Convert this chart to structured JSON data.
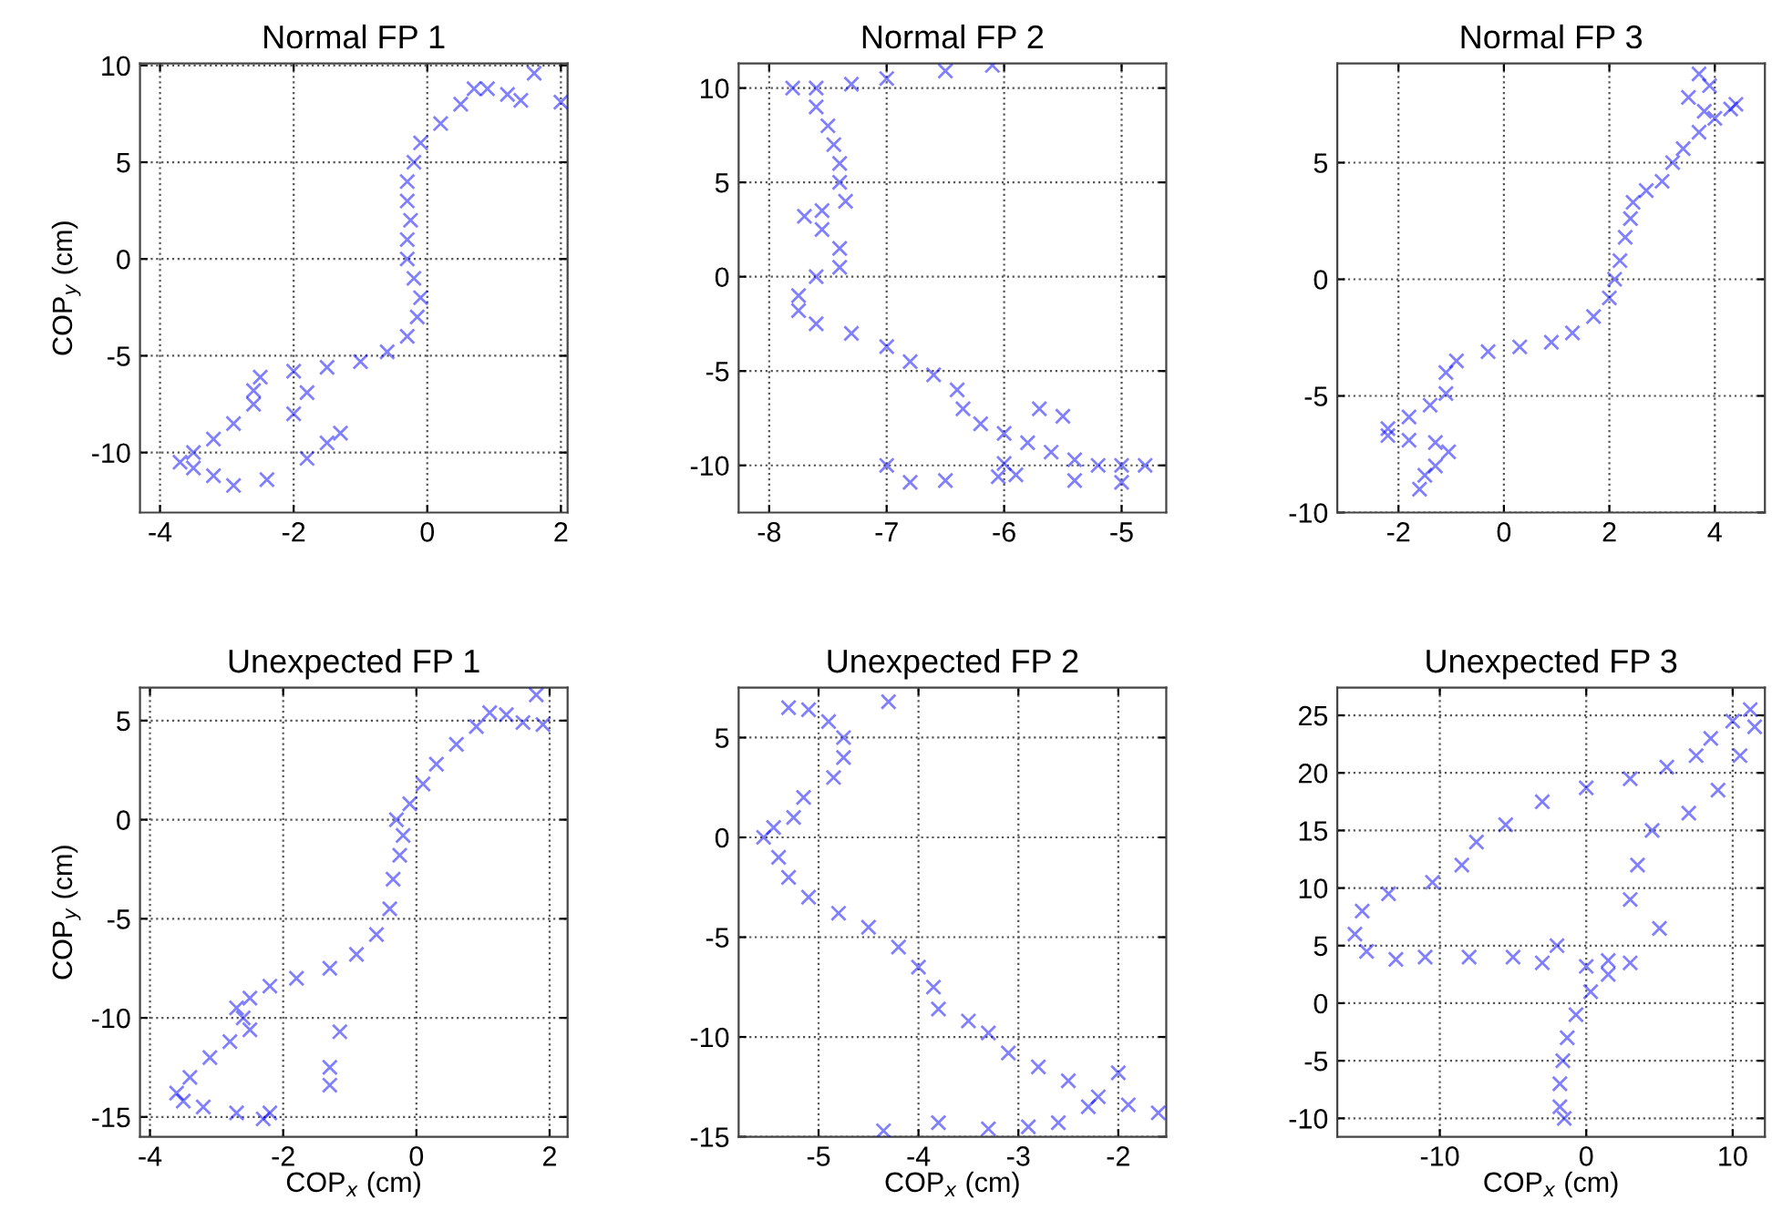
{
  "chart_data": [
    {
      "type": "scatter",
      "title": "Normal FP 1",
      "ylabel": "COP$_{y}$ (cm)",
      "marker": "cross",
      "grid": true,
      "xlim": [
        -4.3,
        2.1
      ],
      "ylim": [
        -13.1,
        10.1
      ],
      "xticks": [
        -4,
        -2,
        0,
        2
      ],
      "yticks": [
        -10,
        -5,
        0,
        5,
        10
      ],
      "x": [
        -2.9,
        -3.2,
        -3.5,
        -3.7,
        -3.5,
        -3.2,
        -2.9,
        -2.6,
        -2.6,
        -2.5,
        -2.0,
        -1.5,
        -1.0,
        -0.6,
        -0.3,
        -0.15,
        -0.1,
        -0.2,
        -0.3,
        -0.3,
        -0.25,
        -0.3,
        -0.3,
        -0.2,
        -0.1,
        0.2,
        0.5,
        0.7,
        0.9,
        1.2,
        1.6,
        2.0,
        1.4,
        -1.8,
        -1.3,
        -1.5,
        -1.8,
        -2.4,
        -2.0
      ],
      "series": [
        {
          "color": "#0000ff",
          "values": [
            -11.7,
            -11.2,
            -10.8,
            -10.5,
            -10.0,
            -9.3,
            -8.5,
            -7.5,
            -6.8,
            -6.1,
            -5.8,
            -5.6,
            -5.3,
            -4.8,
            -4.0,
            -3.0,
            -2.0,
            -1.0,
            0.0,
            1.0,
            2.0,
            3.0,
            4.0,
            5.0,
            6.0,
            7.0,
            8.0,
            8.8,
            8.8,
            8.5,
            9.6,
            8.1,
            8.2,
            -6.9,
            -9.0,
            -9.5,
            -10.3,
            -11.4,
            -8.0
          ]
        }
      ]
    },
    {
      "type": "scatter",
      "title": "Normal FP 2",
      "marker": "cross",
      "grid": true,
      "xlim": [
        -8.26,
        -4.62
      ],
      "ylim": [
        -12.5,
        11.3
      ],
      "xticks": [
        -8,
        -7,
        -6,
        -5
      ],
      "yticks": [
        -10,
        -5,
        0,
        5,
        10
      ],
      "x": [
        -7.8,
        -7.6,
        -7.6,
        -7.5,
        -7.45,
        -7.4,
        -7.4,
        -7.35,
        -7.55,
        -7.7,
        -7.55,
        -7.4,
        -7.4,
        -7.6,
        -7.75,
        -7.75,
        -7.6,
        -7.3,
        -7.0,
        -6.8,
        -6.6,
        -6.4,
        -6.35,
        -6.2,
        -6.0,
        -5.8,
        -5.6,
        -5.4,
        -5.2,
        -5.0,
        -4.8,
        -7.0,
        -6.5,
        -6.1,
        -7.3,
        -6.8,
        -6.5,
        -5.7,
        -5.5,
        -5.0,
        -5.9,
        -6.0,
        -5.4,
        -7.0,
        -6.05
      ],
      "series": [
        {
          "color": "#0000ff",
          "values": [
            10.0,
            10.0,
            9.0,
            8.0,
            7.0,
            6.0,
            5.0,
            4.0,
            3.5,
            3.2,
            2.5,
            1.5,
            0.5,
            0.0,
            -1.0,
            -1.8,
            -2.5,
            -3.0,
            -3.7,
            -4.5,
            -5.2,
            -6.0,
            -7.0,
            -7.8,
            -8.3,
            -8.8,
            -9.3,
            -9.7,
            -10.0,
            -10.0,
            -10.0,
            10.5,
            10.9,
            11.2,
            10.2,
            -10.9,
            -10.8,
            -7.0,
            -7.4,
            -10.9,
            -10.5,
            -9.9,
            -10.8,
            -10.0,
            -10.6
          ]
        }
      ]
    },
    {
      "type": "scatter",
      "title": "Normal FP 3",
      "marker": "cross",
      "grid": true,
      "xlim": [
        -3.16,
        4.95
      ],
      "ylim": [
        -10.0,
        9.25
      ],
      "xticks": [
        -2,
        0,
        2,
        4
      ],
      "yticks": [
        -10,
        -5,
        0,
        5
      ],
      "x": [
        -1.6,
        -1.5,
        -1.3,
        -1.05,
        -1.3,
        -1.8,
        -2.2,
        -2.2,
        -1.8,
        -1.4,
        -1.1,
        -1.1,
        -0.9,
        -0.3,
        0.3,
        0.9,
        1.3,
        1.7,
        2.0,
        2.1,
        2.2,
        2.3,
        2.4,
        2.45,
        2.7,
        3.0,
        3.2,
        3.4,
        3.7,
        4.0,
        4.3,
        4.4,
        3.7,
        3.9,
        3.5,
        3.8
      ],
      "series": [
        {
          "color": "#0000ff",
          "values": [
            -9.0,
            -8.4,
            -8.0,
            -7.4,
            -7.0,
            -6.9,
            -6.7,
            -6.4,
            -5.9,
            -5.4,
            -4.9,
            -4.0,
            -3.5,
            -3.1,
            -2.9,
            -2.7,
            -2.3,
            -1.6,
            -0.8,
            0.0,
            0.8,
            1.8,
            2.6,
            3.3,
            3.8,
            4.2,
            5.0,
            5.6,
            6.3,
            6.9,
            7.3,
            7.5,
            8.8,
            8.3,
            7.8,
            7.2
          ]
        }
      ]
    },
    {
      "type": "scatter",
      "title": "Unexpected FP 1",
      "xlabel": "COP$_{x}$ (cm)",
      "ylabel": "COP$_{y}$ (cm)",
      "marker": "cross",
      "grid": true,
      "xlim": [
        -4.15,
        2.27
      ],
      "ylim": [
        -16.0,
        6.66
      ],
      "xticks": [
        -4,
        -2,
        0,
        2
      ],
      "yticks": [
        -15,
        -10,
        -5,
        0,
        5
      ],
      "x": [
        -2.3,
        -2.7,
        -3.2,
        -3.5,
        -3.6,
        -3.4,
        -3.1,
        -2.8,
        -2.5,
        -2.6,
        -2.7,
        -2.5,
        -2.2,
        -1.8,
        -1.3,
        -0.9,
        -0.6,
        -0.4,
        -0.35,
        -0.25,
        -0.2,
        -0.3,
        -0.1,
        0.1,
        0.3,
        0.6,
        0.9,
        1.1,
        1.35,
        1.8,
        1.6,
        1.9,
        -1.15,
        -1.3,
        -1.3,
        -2.2
      ],
      "series": [
        {
          "color": "#0000ff",
          "values": [
            -15.1,
            -14.8,
            -14.5,
            -14.2,
            -13.8,
            -13.0,
            -12.0,
            -11.2,
            -10.6,
            -10.0,
            -9.5,
            -9.0,
            -8.4,
            -8.0,
            -7.5,
            -6.8,
            -5.8,
            -4.5,
            -3.0,
            -1.8,
            -0.8,
            0.0,
            0.8,
            1.8,
            2.8,
            3.8,
            4.7,
            5.4,
            5.3,
            6.3,
            4.9,
            4.8,
            -10.7,
            -12.5,
            -13.4,
            -14.8
          ]
        }
      ]
    },
    {
      "type": "scatter",
      "title": "Unexpected FP 2",
      "xlabel": "COP$_{x}$ (cm)",
      "marker": "cross",
      "grid": true,
      "xlim": [
        -5.8,
        -1.52
      ],
      "ylim": [
        -15.0,
        7.5
      ],
      "xticks": [
        -5,
        -4,
        -3,
        -2
      ],
      "yticks": [
        -15,
        -10,
        -5,
        0,
        5
      ],
      "x": [
        -5.3,
        -5.1,
        -4.9,
        -4.75,
        -4.75,
        -4.85,
        -5.15,
        -5.25,
        -5.45,
        -5.55,
        -5.4,
        -5.3,
        -5.1,
        -4.8,
        -4.5,
        -4.2,
        -4.0,
        -3.85,
        -3.8,
        -3.5,
        -3.3,
        -3.1,
        -2.8,
        -2.5,
        -2.2,
        -1.9,
        -1.6,
        -4.3,
        -2.0,
        -4.35,
        -3.8,
        -3.3,
        -2.9,
        -2.6,
        -2.3
      ],
      "series": [
        {
          "color": "#0000ff",
          "values": [
            6.5,
            6.4,
            5.8,
            5.0,
            4.0,
            3.0,
            2.0,
            1.0,
            0.5,
            0.0,
            -1.0,
            -2.0,
            -3.0,
            -3.8,
            -4.5,
            -5.5,
            -6.5,
            -7.5,
            -8.6,
            -9.2,
            -9.8,
            -10.8,
            -11.5,
            -12.2,
            -13.0,
            -13.4,
            -13.8,
            6.8,
            -11.8,
            -14.7,
            -14.3,
            -14.6,
            -14.5,
            -14.3,
            -13.5
          ]
        }
      ]
    },
    {
      "type": "scatter",
      "title": "Unexpected FP 3",
      "xlabel": "COP$_{x}$ (cm)",
      "marker": "cross",
      "grid": true,
      "xlim": [
        -17.0,
        12.2
      ],
      "ylim": [
        -11.6,
        27.4
      ],
      "xticks": [
        -10,
        0,
        10
      ],
      "yticks": [
        -10,
        -5,
        0,
        5,
        10,
        15,
        20,
        25
      ],
      "x": [
        -1.5,
        -1.8,
        -1.8,
        -1.6,
        -1.3,
        -0.7,
        0.3,
        1.5,
        3.0,
        1.5,
        0.0,
        -3.0,
        -5.0,
        -8.0,
        -11.0,
        -13.0,
        -15.0,
        -15.8,
        -15.3,
        -13.5,
        -10.5,
        -8.5,
        -7.5,
        -5.5,
        -3.0,
        0.0,
        3.0,
        5.5,
        7.5,
        8.5,
        10.0,
        11.2,
        11.5,
        10.5,
        9.0,
        7.0,
        4.5,
        3.5,
        3.0,
        5.0,
        -2.0
      ],
      "series": [
        {
          "color": "#0000ff",
          "values": [
            -10.0,
            -9.0,
            -7.0,
            -5.0,
            -3.0,
            -1.0,
            1.0,
            2.5,
            3.5,
            3.7,
            3.2,
            3.5,
            4.0,
            4.0,
            4.0,
            3.8,
            4.5,
            6.0,
            8.0,
            9.5,
            10.5,
            12.0,
            14.0,
            15.5,
            17.5,
            18.7,
            19.5,
            20.5,
            21.5,
            23.0,
            24.5,
            25.5,
            24.0,
            21.5,
            18.5,
            16.5,
            15.0,
            12.0,
            9.0,
            6.5,
            5.0
          ]
        }
      ]
    }
  ]
}
